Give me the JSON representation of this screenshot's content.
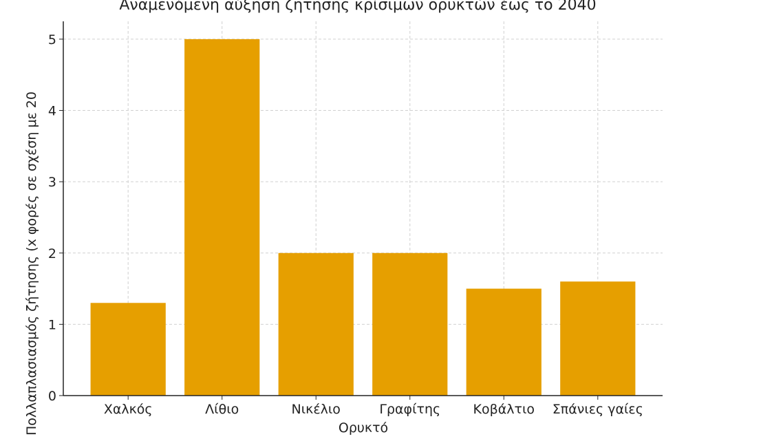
{
  "chart_data": {
    "type": "bar",
    "title": "Αναμενόμενη αύξηση ζήτησης κρίσιμων ορυκτών έως το 2040",
    "x_label": "Ορυκτό",
    "y_label": "Πολλαπλασιασμός ζήτησης (x φορές σε σχέση με 20",
    "categories": [
      "Χαλκός",
      "Λίθιο",
      "Νικέλιο",
      "Γραφίτης",
      "Κοβάλτιο",
      "Σπάνιες γαίες"
    ],
    "values": [
      1.3,
      5,
      2,
      2,
      1.5,
      1.6
    ],
    "color": "#e69f00",
    "ylim": [
      0,
      5.25
    ],
    "yticks": [
      0,
      1,
      2,
      3,
      4,
      5
    ],
    "grid": true
  }
}
